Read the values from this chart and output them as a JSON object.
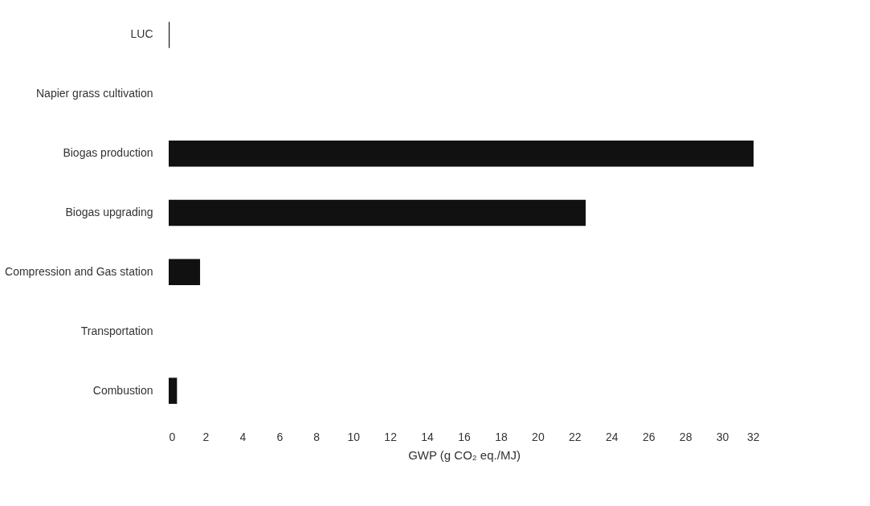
{
  "chart_data": {
    "type": "bar",
    "orientation": "horizontal",
    "xlabel": "GWP (g CO₂ eq./MJ)",
    "categories": [
      "LUC",
      "Napier grass cultivation",
      "Biogas production",
      "Biogas upgrading",
      "Compression and Gas station",
      "Transportation",
      "Combustion"
    ],
    "values": [
      0.05,
      0,
      31.7,
      22.6,
      1.7,
      0,
      0.45
    ],
    "color": "#111111",
    "xlim": [
      0,
      32
    ],
    "xticks": [
      0,
      2,
      4,
      6,
      8,
      10,
      12,
      14,
      16,
      18,
      20,
      22,
      24,
      26,
      28,
      30,
      32
    ],
    "grid": false
  }
}
